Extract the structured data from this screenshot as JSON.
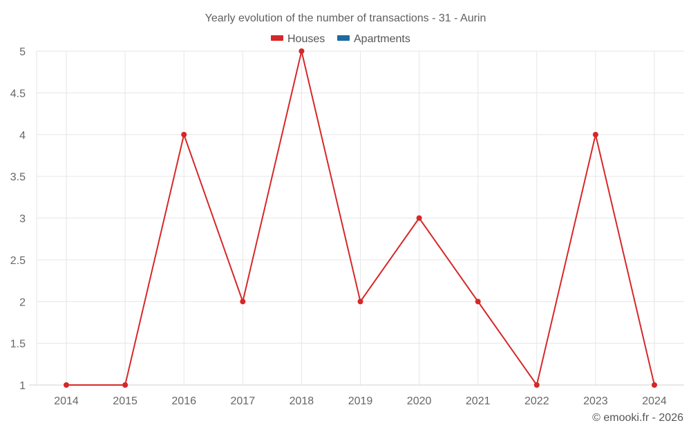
{
  "chart_data": {
    "type": "line",
    "title": "Yearly evolution of the number of transactions - 31 - Aurin",
    "xlabel": "",
    "ylabel": "",
    "categories": [
      "2014",
      "2015",
      "2016",
      "2017",
      "2018",
      "2019",
      "2020",
      "2021",
      "2022",
      "2023",
      "2024"
    ],
    "series": [
      {
        "name": "Houses",
        "color": "#d62728",
        "values": [
          1,
          1,
          4,
          2,
          5,
          2,
          3,
          2,
          1,
          4,
          1
        ]
      },
      {
        "name": "Apartments",
        "color": "#1f6aa0",
        "values": []
      }
    ],
    "ylim": [
      1,
      5
    ],
    "yticks": [
      "1",
      "1.5",
      "2",
      "2.5",
      "3",
      "3.5",
      "4",
      "4.5",
      "5"
    ],
    "grid": true,
    "legend_position": "top"
  },
  "legend": {
    "items": [
      {
        "label": "Houses",
        "color": "#d62728"
      },
      {
        "label": "Apartments",
        "color": "#1f6aa0"
      }
    ]
  },
  "credit": "© emooki.fr - 2026"
}
